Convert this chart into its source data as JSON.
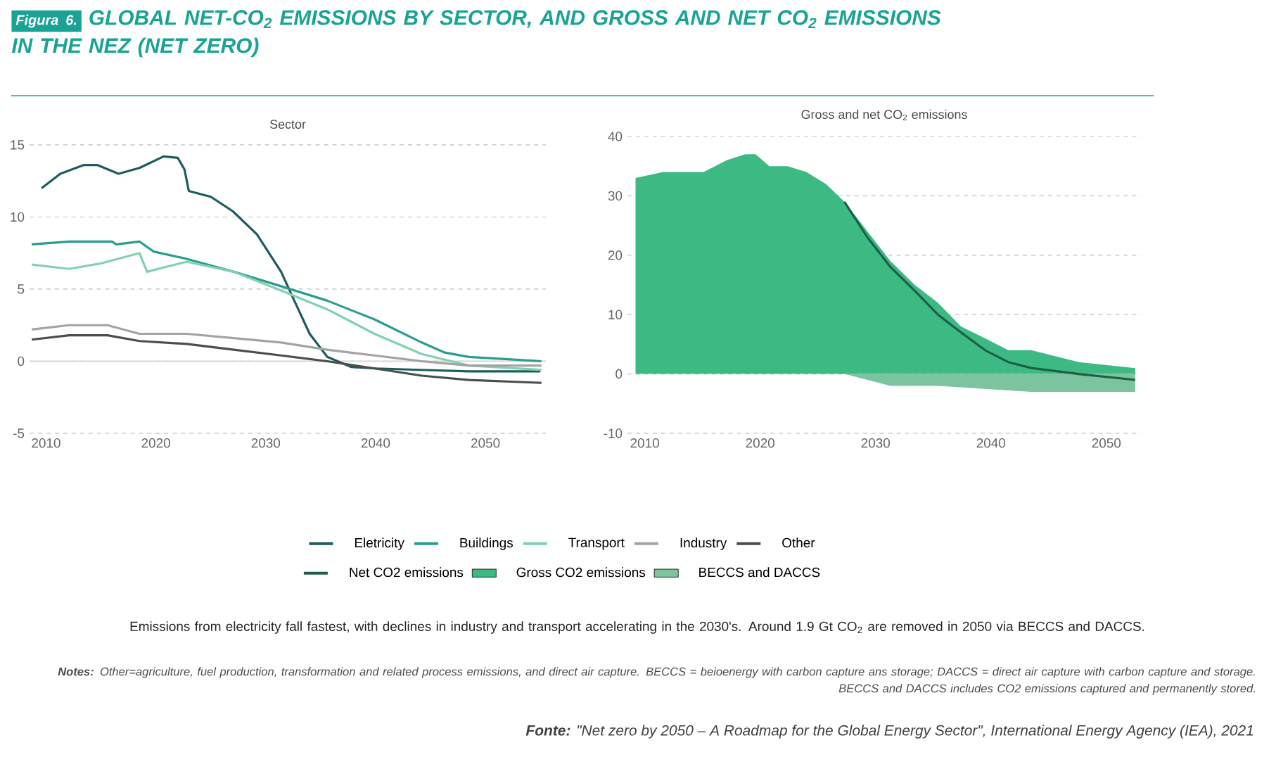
{
  "chart_data": [
    {
      "type": "line",
      "title": "Sector",
      "xlim": [
        2008.5,
        2055.5
      ],
      "xticks": [
        2010,
        2020,
        2030,
        2040,
        2050
      ],
      "ylim": [
        -5,
        15
      ],
      "yticks": [
        -5,
        0,
        5,
        10,
        15
      ],
      "grid": "y",
      "legend": "bottom",
      "ref_lines": [
        {
          "axis": "y",
          "value": 0,
          "color": "#d9d9d9"
        }
      ],
      "series": [
        {
          "name": "Eletricity",
          "color": "#1d5c5e",
          "x": [
            2009.6,
            2011.3,
            2013.4,
            2014.7,
            2016.6,
            2018.5,
            2020.7,
            2022,
            2022.6,
            2023,
            2025,
            2027,
            2029.2,
            2031.4,
            2032.6,
            2034,
            2035.6,
            2037.8,
            2040,
            2044,
            2048.5,
            2055
          ],
          "values": [
            12.0,
            13.0,
            13.6,
            13.6,
            13.0,
            13.4,
            14.2,
            14.1,
            13.3,
            11.8,
            11.4,
            10.4,
            8.8,
            6.2,
            4.2,
            1.9,
            0.3,
            -0.4,
            -0.5,
            -0.6,
            -0.7,
            -0.7
          ]
        },
        {
          "name": "Buildings",
          "color": "#2a9d90",
          "x": [
            2008.7,
            2012.1,
            2016,
            2016.4,
            2018.5,
            2019.8,
            2022.8,
            2027.1,
            2031.4,
            2035.6,
            2039.9,
            2044.2,
            2046.3,
            2048.5,
            2055.1
          ],
          "values": [
            8.1,
            8.3,
            8.3,
            8.1,
            8.3,
            7.6,
            7.1,
            6.2,
            5.2,
            4.2,
            2.9,
            1.3,
            0.6,
            0.3,
            0
          ]
        },
        {
          "name": "Transport",
          "color": "#82d1b2",
          "x": [
            2008.7,
            2012.1,
            2015.1,
            2018.5,
            2019.2,
            2020.7,
            2022.8,
            2027.1,
            2031.4,
            2035.6,
            2039.9,
            2044.2,
            2048.5,
            2055.1
          ],
          "values": [
            6.7,
            6.4,
            6.8,
            7.5,
            6.2,
            6.5,
            6.9,
            6.2,
            4.9,
            3.6,
            1.9,
            0.5,
            -0.3,
            -0.6
          ]
        },
        {
          "name": "Industry",
          "color": "#a3a3a3",
          "x": [
            2008.7,
            2012.1,
            2015.6,
            2018.5,
            2022.8,
            2027.1,
            2031.4,
            2035.6,
            2039.9,
            2044.2,
            2048.5,
            2055.1
          ],
          "values": [
            2.2,
            2.5,
            2.5,
            1.9,
            1.9,
            1.6,
            1.3,
            0.8,
            0.4,
            0,
            -0.3,
            -0.3
          ]
        },
        {
          "name": "Other",
          "color": "#4d4d4d",
          "x": [
            2008.7,
            2012.1,
            2015.6,
            2018.5,
            2022.8,
            2027.1,
            2031.4,
            2035.6,
            2039.9,
            2044.2,
            2048.5,
            2055.1
          ],
          "values": [
            1.5,
            1.8,
            1.8,
            1.4,
            1.2,
            0.8,
            0.4,
            0,
            -0.5,
            -1.0,
            -1.3,
            -1.5
          ]
        }
      ],
      "annotations": [
        "Figura 6.",
        "GLOBAL NET-CO$_{2}$ EMISSIONS BY SECTOR, AND GROSS AND NET CO$_{2}$ EMISSIONS IN THE NEZ (NET ZERO)",
        "Emissions from electricity fall fastest, with declines in industry and transport accelerating in the 2030's. Around 1.9 Gt CO$_{2}$ are removed in 2050 via BECCS and DACCS.",
        "**Notes:** Other=agriculture, fuel production, transformation and related process emissions, and direct air capture. BECCS = beioenergy with carbon capture ans storage; DACCS = direct air capture with carbon capture and storage. BECCS and DACCS includes CO2 emissions captured and permanently stored.",
        "**Fonte:** \"Net zero by 2050 – A Roadmap for the Global Energy Sector\", International Energy Agency (IEA), 2021"
      ]
    },
    {
      "type": "area",
      "title": "Gross and net CO$_{2}$ emissions",
      "xlim": [
        2008.5,
        2053
      ],
      "xticks": [
        2010,
        2020,
        2030,
        2040,
        2050
      ],
      "ylim": [
        -10,
        40
      ],
      "yticks": [
        -10,
        0,
        10,
        20,
        30,
        40
      ],
      "grid": "y",
      "legend": "bottom",
      "series": [
        {
          "name": "Net CO2 emissions",
          "type": "line",
          "color": "#1e5e47",
          "x": [
            2027.3,
            2029.3,
            2031.3,
            2033.4,
            2035.4,
            2037.4,
            2039.5,
            2041.5,
            2043.5,
            2047.6,
            2052.5
          ],
          "values": [
            29,
            23,
            18,
            14,
            10,
            7,
            4,
            2,
            1,
            0,
            -1
          ]
        },
        {
          "name": "Gross CO2 emissions",
          "type": "area",
          "color": "#3dba84",
          "x": [
            2009.2,
            2011.6,
            2015.1,
            2017.1,
            2018.7,
            2019.6,
            2020.8,
            2022.4,
            2024,
            2025.7,
            2027.3,
            2029.3,
            2031.3,
            2033.4,
            2035.4,
            2037.4,
            2039.5,
            2041.5,
            2043.5,
            2047.6,
            2052.5
          ],
          "values": [
            33,
            34,
            34,
            36,
            37,
            37,
            35,
            35,
            34,
            32,
            29,
            24,
            19,
            15,
            12,
            8,
            6,
            4,
            4,
            2,
            1
          ]
        },
        {
          "name": "BECCS and DACCS",
          "type": "area",
          "color": "#7cc4a0",
          "x": [
            2025.7,
            2027.3,
            2029.3,
            2031.3,
            2035.4,
            2043.5,
            2052.5
          ],
          "values": [
            0,
            0,
            -1,
            -2,
            -2,
            -3,
            -3
          ]
        }
      ]
    }
  ]
}
